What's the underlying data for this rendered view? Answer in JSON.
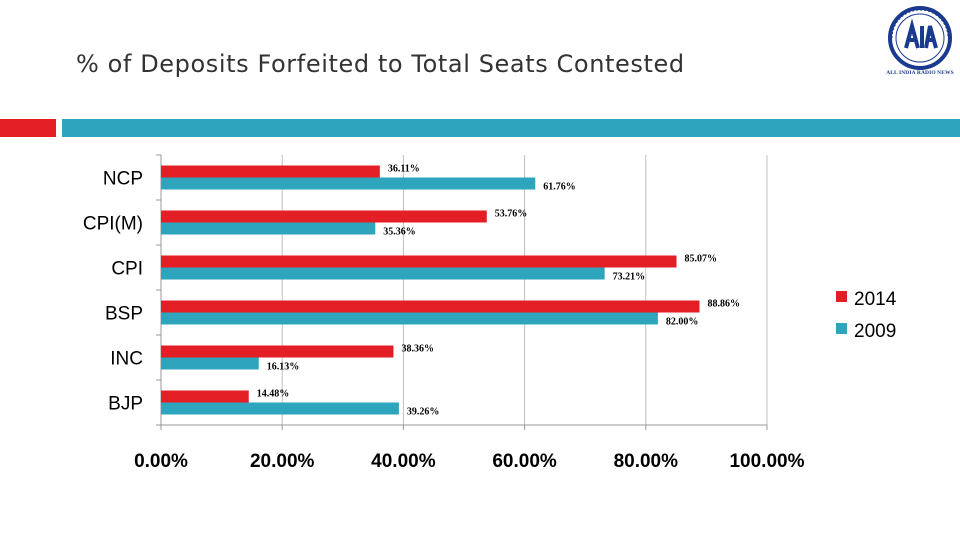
{
  "slide": {
    "title": "% of Deposits Forfeited to Total Seats Contested",
    "logo_icon": "all-india-radio-logo",
    "logo_caption": "ALL INDIA RADIO NEWS",
    "accent_colors": {
      "red": "#e31e24",
      "teal": "#2fa4bd"
    }
  },
  "chart_data": {
    "type": "bar",
    "orientation": "horizontal",
    "title": "",
    "xlabel": "",
    "ylabel": "",
    "categories": [
      "NCP",
      "CPI(M)",
      "CPI",
      "BSP",
      "INC",
      "BJP"
    ],
    "series": [
      {
        "name": "2014",
        "color": "#e31e24",
        "values": [
          36.11,
          53.76,
          85.07,
          88.86,
          38.36,
          14.48
        ],
        "labels": [
          "36.11%",
          "53.76%",
          "85.07%",
          "88.86%",
          "38.36%",
          "14.48%"
        ]
      },
      {
        "name": "2009",
        "color": "#2fa4bd",
        "values": [
          61.76,
          35.36,
          73.21,
          82.0,
          16.13,
          39.26
        ],
        "labels": [
          "61.76%",
          "35.36%",
          "73.21%",
          "82.00%",
          "16.13%",
          "39.26%"
        ]
      }
    ],
    "xlim": [
      0,
      100
    ],
    "x_ticks": [
      0,
      20,
      40,
      60,
      80,
      100
    ],
    "x_tick_labels": [
      "0.00%",
      "20.00%",
      "40.00%",
      "60.00%",
      "80.00%",
      "100.00%"
    ],
    "grid": "vertical",
    "legend": "right"
  }
}
